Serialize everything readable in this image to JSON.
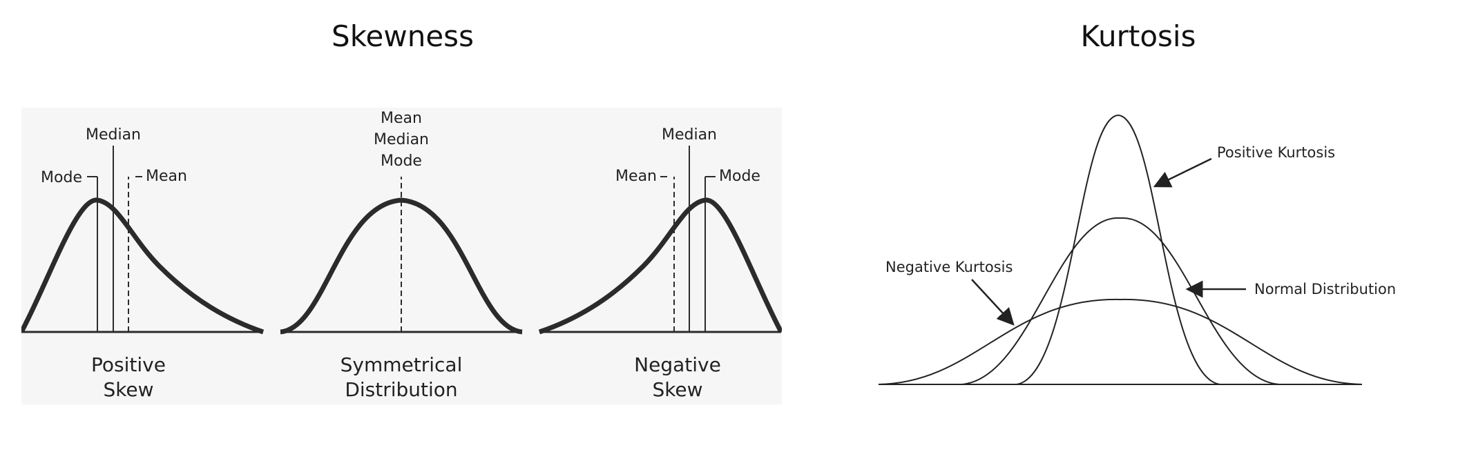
{
  "titles": {
    "skewness": "Skewness",
    "kurtosis": "Kurtosis"
  },
  "skewness": {
    "positive": {
      "labels": [
        "Median",
        "Mode",
        "Mean"
      ],
      "caption": [
        "Positive",
        "Skew"
      ]
    },
    "symmetric": {
      "labels": [
        "Mean",
        "Median",
        "Mode"
      ],
      "caption": [
        "Symmetrical",
        "Distribution"
      ]
    },
    "negative": {
      "labels": [
        "Median",
        "Mean",
        "Mode"
      ],
      "caption": [
        "Negative",
        "Skew"
      ]
    }
  },
  "kurtosis": {
    "positive_label": "Positive Kurtosis",
    "normal_label": "Normal Distribution",
    "negative_label": "Negative Kurtosis"
  },
  "colors": {
    "curve": "#2b2b2b",
    "panel_bg": "#f6f6f6"
  }
}
